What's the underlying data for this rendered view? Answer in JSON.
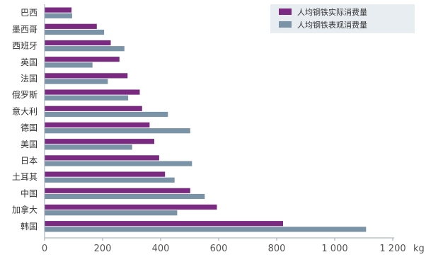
{
  "chart_data": {
    "type": "bar",
    "orientation": "horizontal",
    "title": "",
    "xlabel": "",
    "ylabel": "",
    "unit": "kg",
    "categories": [
      "巴西",
      "墨西哥",
      "西班牙",
      "英国",
      "法国",
      "俄罗斯",
      "意大利",
      "德国",
      "美国",
      "日本",
      "土耳其",
      "中国",
      "加拿大",
      "韩国"
    ],
    "series": [
      {
        "name": "人均钢铁实际消费量",
        "color": "#7b2a82",
        "values": [
          93,
          180,
          228,
          258,
          286,
          328,
          336,
          362,
          378,
          395,
          415,
          502,
          594,
          822
        ]
      },
      {
        "name": "人均钢铁表观消费量",
        "color": "#7a93a6",
        "values": [
          95,
          205,
          275,
          165,
          218,
          288,
          425,
          502,
          302,
          508,
          448,
          552,
          457,
          1108
        ]
      }
    ],
    "xlim": [
      0,
      1200
    ],
    "xticks": [
      0,
      200,
      400,
      600,
      800,
      1000,
      1200
    ],
    "xtick_labels": [
      "0",
      "200",
      "400",
      "600",
      "800",
      "1 000",
      "1 200"
    ],
    "legend_position": "top-right",
    "grid": false
  }
}
